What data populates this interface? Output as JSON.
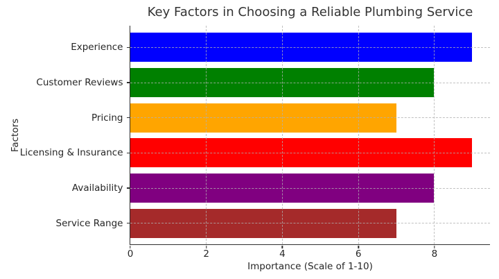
{
  "chart_data": {
    "type": "bar",
    "orientation": "horizontal",
    "title": "Key Factors in Choosing a Reliable Plumbing Service",
    "xlabel": "Importance (Scale of 1-10)",
    "ylabel": "Factors",
    "categories": [
      "Experience",
      "Customer Reviews",
      "Pricing",
      "Licensing & Insurance",
      "Availability",
      "Service Range"
    ],
    "values": [
      9,
      8,
      7,
      9,
      8,
      7
    ],
    "bar_colors": [
      "#0000ff",
      "#008000",
      "#ffa500",
      "#ff0000",
      "#800080",
      "#a52a2a"
    ],
    "xlim": [
      0,
      9.46
    ],
    "xticks": [
      0,
      2,
      4,
      6,
      8
    ],
    "grid": true,
    "grid_style": "dashed",
    "legend": "none"
  },
  "colors": {
    "background": "#ffffff",
    "spine": "#2e2e2e",
    "grid": "#b0b0b0",
    "text": "#262626",
    "title_text": "#333333"
  }
}
